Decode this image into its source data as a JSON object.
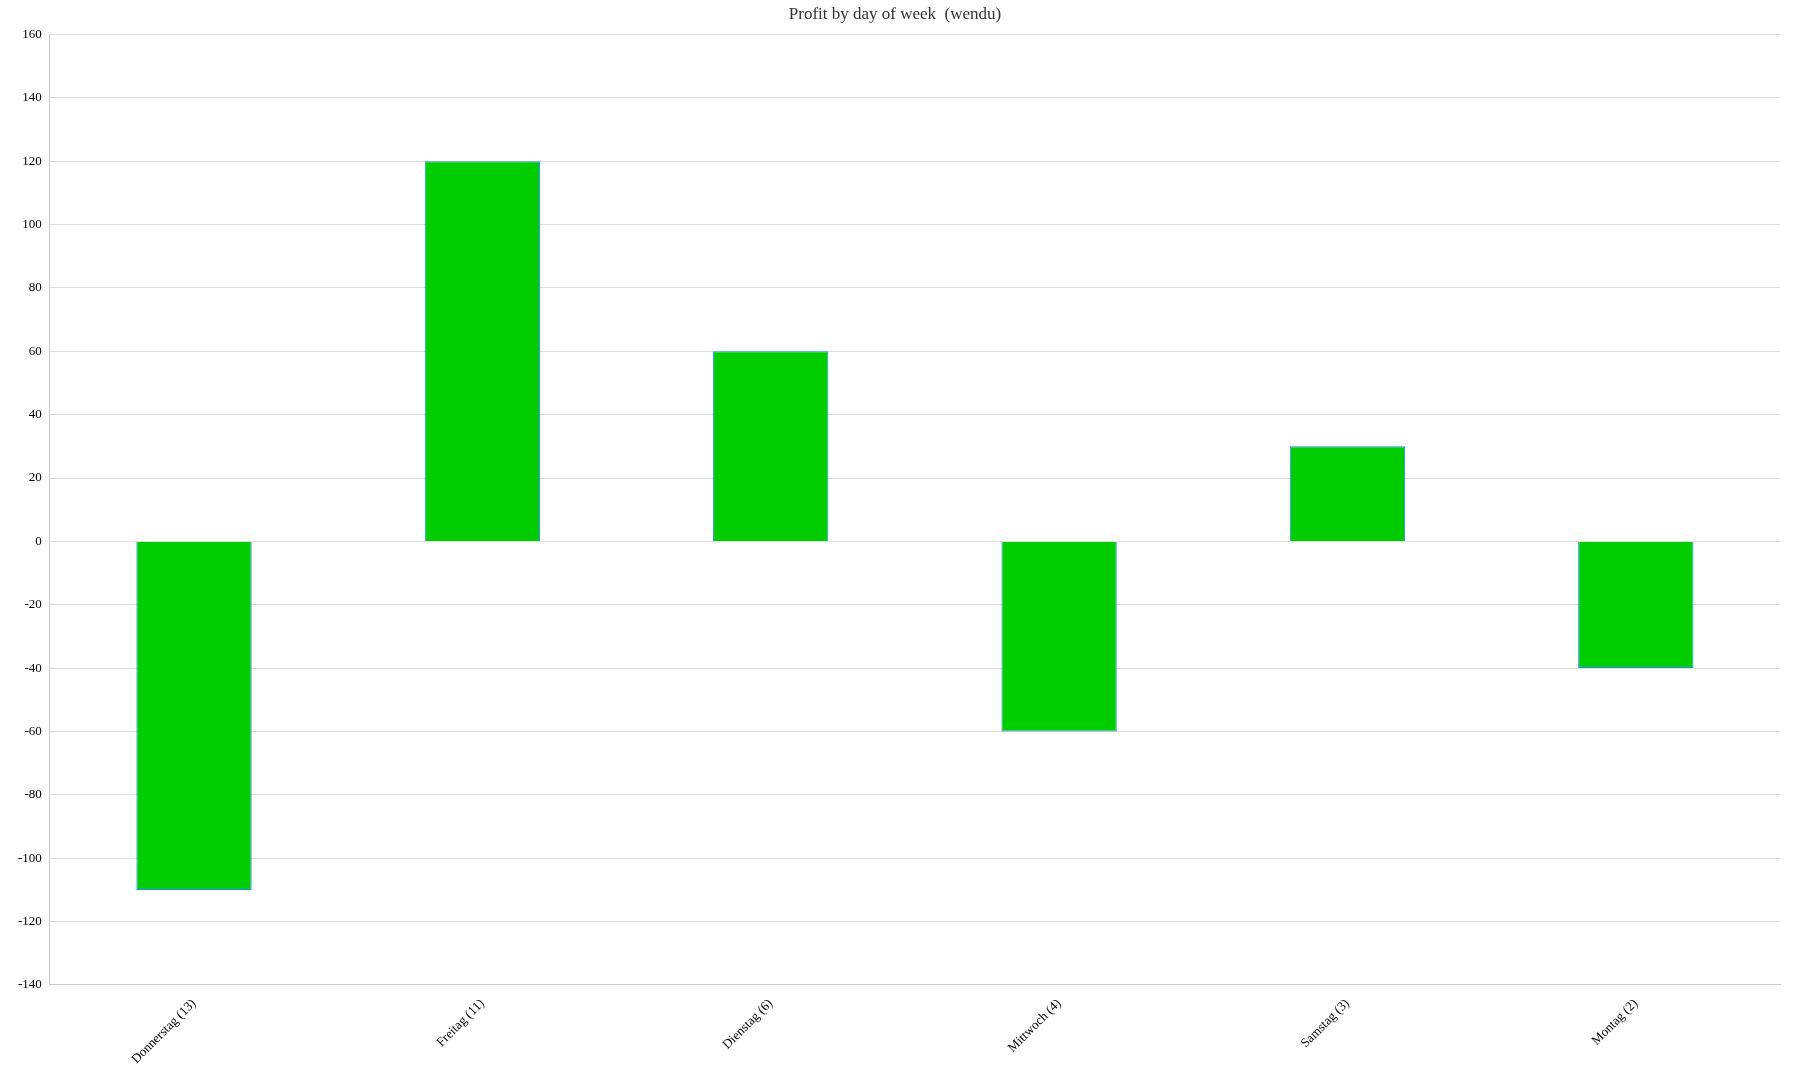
{
  "chart_data": {
    "type": "bar",
    "title": "Profit by day of week  (wendu)",
    "categories": [
      "Donnerstag (13)",
      "Freitag (11)",
      "Dienstag (6)",
      "Mittwoch (4)",
      "Samstag (3)",
      "Montag (2)"
    ],
    "values": [
      -110,
      120,
      60,
      -60,
      30,
      -40
    ],
    "color": "#00cc00",
    "ylim": [
      -140,
      160
    ],
    "yticks": [
      -140,
      -120,
      -100,
      -80,
      -60,
      -40,
      -20,
      0,
      20,
      40,
      60,
      80,
      100,
      120,
      140,
      160
    ],
    "grid": "y"
  }
}
